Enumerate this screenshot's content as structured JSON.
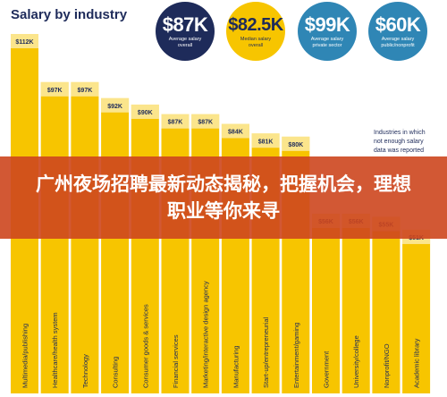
{
  "chart_data": {
    "type": "bar",
    "title": "Salary by industry",
    "categories": [
      "Multimedia/publishing",
      "Healthcare/health system",
      "Technology",
      "Consulting",
      "Consumer goods & services",
      "Financial services",
      "Marketing/interactive design agency",
      "Manufacturing",
      "Start-up/entrepreneurial",
      "Entertainment/gaming",
      "Government",
      "University/college",
      "Nonprofit/NGO",
      "Academic library"
    ],
    "values": [
      112,
      97,
      97,
      92,
      90,
      87,
      87,
      84,
      81,
      80,
      56,
      56,
      55,
      51
    ],
    "value_labels": [
      "$112K",
      "$97K",
      "$97K",
      "$92K",
      "$90K",
      "$87K",
      "$87K",
      "$84K",
      "$81K",
      "$80K",
      "$56K",
      "$56K",
      "$55K",
      "$51K"
    ],
    "ylim": [
      0,
      112
    ],
    "bar_color": "#f7c500",
    "side_note": [
      "Industries in which",
      "not enough salary",
      "data was reported"
    ]
  },
  "stats": [
    {
      "value": "$87K",
      "lines": [
        "Average salary",
        "overall"
      ],
      "bg": "#1e2b5a",
      "fg": "#ffffff"
    },
    {
      "value": "$82.5K",
      "lines": [
        "Median salary",
        "overall"
      ],
      "bg": "#f7c500",
      "fg": "#1e2b5a"
    },
    {
      "value": "$99K",
      "lines": [
        "Average salary",
        "private sector"
      ],
      "bg": "#2f86b5",
      "fg": "#ffffff"
    },
    {
      "value": "$60K",
      "lines": [
        "Average salary",
        "public/nonprofit"
      ],
      "bg": "#2f86b5",
      "fg": "#ffffff"
    }
  ],
  "banner": {
    "text": "广州夜场招聘最新动态揭秘，把握机会，理想职业等你来寻"
  },
  "colors": {
    "navy": "#1e2b5a",
    "yellow": "#f7c500",
    "blue": "#2f86b5",
    "banner": "#cd461e"
  }
}
